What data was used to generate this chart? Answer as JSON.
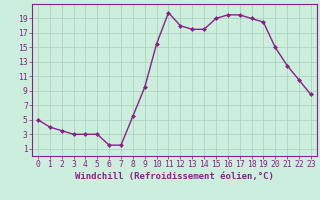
{
  "x": [
    0,
    1,
    2,
    3,
    4,
    5,
    6,
    7,
    8,
    9,
    10,
    11,
    12,
    13,
    14,
    15,
    16,
    17,
    18,
    19,
    20,
    21,
    22,
    23
  ],
  "y": [
    5,
    4,
    3.5,
    3,
    3,
    3,
    1.5,
    1.5,
    5.5,
    9.5,
    15.5,
    19.8,
    18,
    17.5,
    17.5,
    19,
    19.5,
    19.5,
    19,
    18.5,
    15,
    12.5,
    10.5,
    8.5
  ],
  "line_color": "#882288",
  "marker": "D",
  "marker_size": 2.0,
  "bg_color": "#cceedd",
  "grid_color": "#aaccbb",
  "xlabel": "Windchill (Refroidissement éolien,°C)",
  "ylabel": "",
  "title": "",
  "xlim": [
    -0.5,
    23.5
  ],
  "ylim": [
    0,
    21
  ],
  "yticks": [
    1,
    3,
    5,
    7,
    9,
    11,
    13,
    15,
    17,
    19
  ],
  "xticks": [
    0,
    1,
    2,
    3,
    4,
    5,
    6,
    7,
    8,
    9,
    10,
    11,
    12,
    13,
    14,
    15,
    16,
    17,
    18,
    19,
    20,
    21,
    22,
    23
  ],
  "xlabel_fontsize": 6.5,
  "tick_fontsize": 5.8,
  "line_width": 1.0
}
